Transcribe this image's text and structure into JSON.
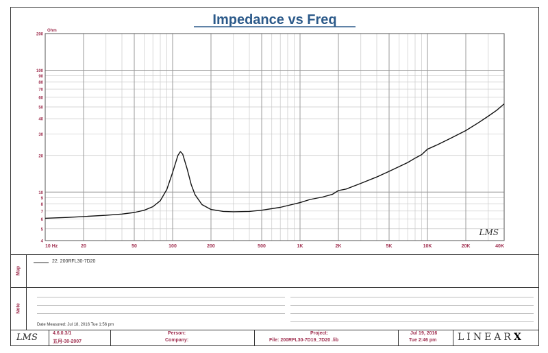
{
  "chart_data": {
    "type": "line",
    "title": "Impedance vs Freq",
    "ylabel": "Ohm",
    "xscale": "log",
    "yscale": "log",
    "xlim": [
      10,
      40000
    ],
    "ylim": [
      4,
      200
    ],
    "grid": true,
    "legend": "bottom panel",
    "watermark": "LMS",
    "x_ticks": [
      {
        "value": 10,
        "label": "10  Hz"
      },
      {
        "value": 20,
        "label": "20"
      },
      {
        "value": 50,
        "label": "50"
      },
      {
        "value": 100,
        "label": "100"
      },
      {
        "value": 200,
        "label": "200"
      },
      {
        "value": 500,
        "label": "500"
      },
      {
        "value": 1000,
        "label": "1K"
      },
      {
        "value": 2000,
        "label": "2K"
      },
      {
        "value": 5000,
        "label": "5K"
      },
      {
        "value": 10000,
        "label": "10K"
      },
      {
        "value": 20000,
        "label": "20K"
      },
      {
        "value": 40000,
        "label": "40K"
      }
    ],
    "y_ticks": [
      {
        "value": 4,
        "label": "4"
      },
      {
        "value": 5,
        "label": "5"
      },
      {
        "value": 6,
        "label": "6"
      },
      {
        "value": 7,
        "label": "7"
      },
      {
        "value": 8,
        "label": "8"
      },
      {
        "value": 9,
        "label": "9"
      },
      {
        "value": 10,
        "label": "10"
      },
      {
        "value": 20,
        "label": "20"
      },
      {
        "value": 30,
        "label": "30"
      },
      {
        "value": 40,
        "label": "40"
      },
      {
        "value": 50,
        "label": "50"
      },
      {
        "value": 60,
        "label": "60"
      },
      {
        "value": 70,
        "label": "70"
      },
      {
        "value": 80,
        "label": "80"
      },
      {
        "value": 90,
        "label": "90"
      },
      {
        "value": 100,
        "label": "100"
      },
      {
        "value": 200,
        "label": "200"
      }
    ],
    "series": [
      {
        "name": "200RFL30-7D20",
        "color": "#111111",
        "points": [
          [
            10,
            6.1
          ],
          [
            15,
            6.2
          ],
          [
            20,
            6.3
          ],
          [
            30,
            6.45
          ],
          [
            40,
            6.6
          ],
          [
            50,
            6.8
          ],
          [
            60,
            7.1
          ],
          [
            70,
            7.6
          ],
          [
            80,
            8.5
          ],
          [
            90,
            10.5
          ],
          [
            100,
            14.5
          ],
          [
            110,
            20
          ],
          [
            115,
            21.5
          ],
          [
            120,
            20.5
          ],
          [
            130,
            15.5
          ],
          [
            140,
            11.5
          ],
          [
            150,
            9.5
          ],
          [
            170,
            7.9
          ],
          [
            200,
            7.2
          ],
          [
            250,
            6.95
          ],
          [
            300,
            6.9
          ],
          [
            400,
            6.95
          ],
          [
            500,
            7.1
          ],
          [
            700,
            7.5
          ],
          [
            1000,
            8.2
          ],
          [
            1200,
            8.7
          ],
          [
            1500,
            9.1
          ],
          [
            1800,
            9.6
          ],
          [
            2000,
            10.3
          ],
          [
            2300,
            10.6
          ],
          [
            3000,
            11.8
          ],
          [
            4000,
            13.3
          ],
          [
            5000,
            14.8
          ],
          [
            7000,
            17.5
          ],
          [
            8000,
            19
          ],
          [
            9000,
            20.3
          ],
          [
            10000,
            22.5
          ],
          [
            12000,
            24.5
          ],
          [
            15000,
            27.5
          ],
          [
            20000,
            32
          ],
          [
            25000,
            37
          ],
          [
            30000,
            42
          ],
          [
            35000,
            47
          ],
          [
            40000,
            53
          ]
        ]
      }
    ]
  },
  "colors": {
    "title": "#2c5a8a",
    "tick_labels": "#a03050",
    "grid_major": "#9a9a9a",
    "grid_minor": "#c8c8c8",
    "accent": "#a03050"
  },
  "panels": {
    "map_label": "Map",
    "note_label": "Note",
    "legend_entry": "22. 200RFL30-7D20",
    "date_measured": "Date Measured: Jul 18, 2016  Tue  1:56 pm"
  },
  "footer": {
    "logo": "LMS",
    "version": "4.6.0.3/1",
    "version_date": "五月-30-2007",
    "person_label": "Person:",
    "company_label": "Company:",
    "project_label": "Project:",
    "file_label": "File: 200RFL30-7D19_7D20 .lib",
    "date": "Jul 19, 2016",
    "time": "Tue  2:46 pm",
    "brand": "LINEAR",
    "brand_x": "X"
  }
}
